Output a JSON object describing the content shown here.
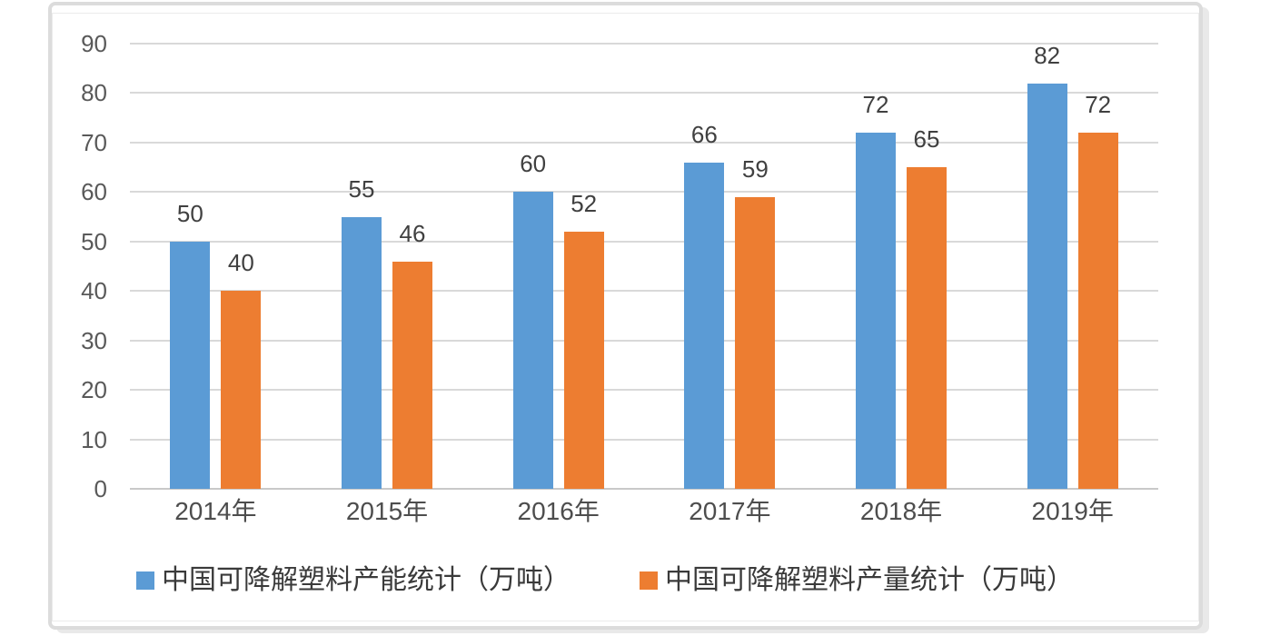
{
  "chart_data": {
    "type": "bar",
    "title": "",
    "xlabel": "",
    "ylabel": "",
    "categories": [
      "2014年",
      "2015年",
      "2016年",
      "2017年",
      "2018年",
      "2019年"
    ],
    "series": [
      {
        "name": "中国可降解塑料产能统计（万吨）",
        "color": "#5B9BD5",
        "values": [
          50,
          55,
          60,
          66,
          72,
          82
        ]
      },
      {
        "name": "中国可降解塑料产量统计（万吨）",
        "color": "#ED7D31",
        "values": [
          40,
          46,
          52,
          59,
          65,
          72
        ]
      }
    ],
    "ylim": [
      0,
      90
    ],
    "yticks": [
      0,
      10,
      20,
      30,
      40,
      50,
      60,
      70,
      80,
      90
    ],
    "grid": "horizontal",
    "gridline_color": "#d9d9d9",
    "data_labels": true,
    "legend_position": "bottom",
    "tick_label_color": "#595959",
    "data_label_color": "#404040"
  }
}
